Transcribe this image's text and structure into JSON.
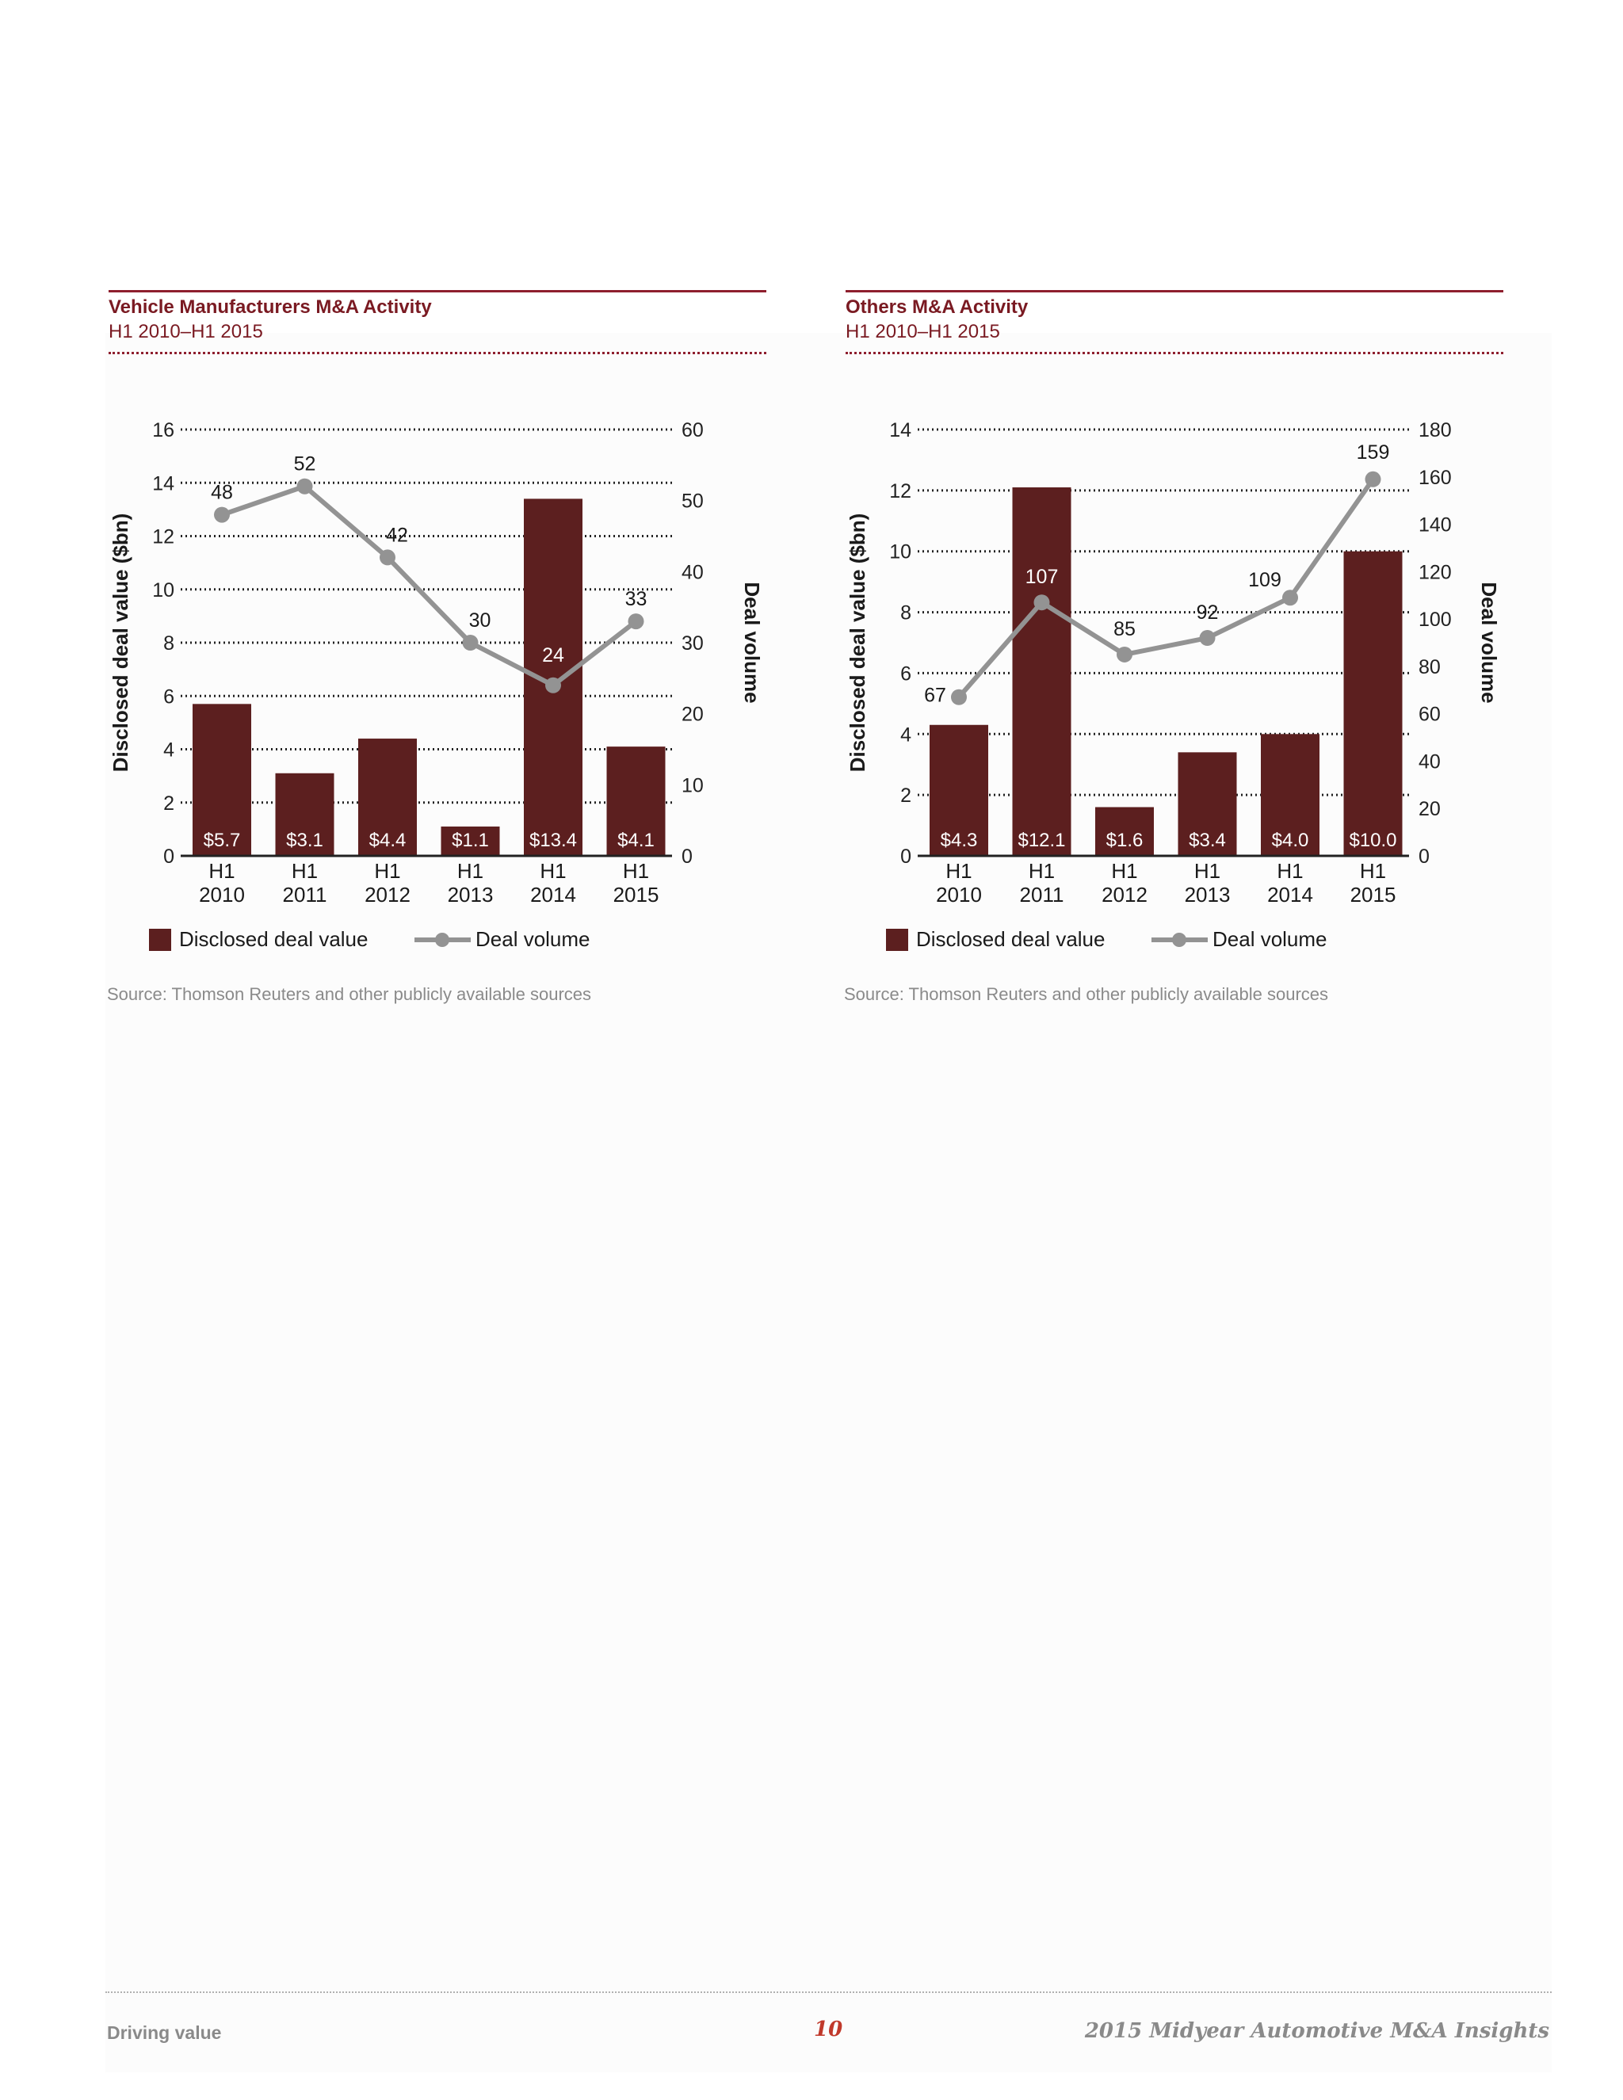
{
  "charts": [
    {
      "title": "Vehicle Manufacturers M&A Activity",
      "subtitle": "H1 2010–H1 2015",
      "source": "Source: Thomson Reuters and other publicly available sources",
      "legend": {
        "bar": "Disclosed deal value",
        "line": "Deal volume"
      }
    },
    {
      "title": "Others M&A Activity",
      "subtitle": "H1 2010–H1 2015",
      "source": "Source: Thomson Reuters and other publicly available sources",
      "legend": {
        "bar": "Disclosed deal value",
        "line": "Deal volume"
      }
    }
  ],
  "chart_data": [
    {
      "type": "bar",
      "categories": [
        "H1 2010",
        "H1 2011",
        "H1 2012",
        "H1 2013",
        "H1 2014",
        "H1 2015"
      ],
      "series": [
        {
          "name": "Disclosed deal value",
          "type": "bar",
          "axis": "left",
          "values": [
            5.7,
            3.1,
            4.4,
            1.1,
            13.4,
            4.1
          ],
          "labels": [
            "$5.7",
            "$3.1",
            "$4.4",
            "$1.1",
            "$13.4",
            "$4.1"
          ],
          "color": "#5c1f1f"
        },
        {
          "name": "Deal volume",
          "type": "line",
          "axis": "right",
          "values": [
            48,
            52,
            42,
            30,
            24,
            33
          ],
          "labels": [
            "48",
            "52",
            "42",
            "30",
            "24",
            "33"
          ],
          "color": "#939393"
        }
      ],
      "ylabel": "Disclosed deal value ($bn)",
      "y2label": "Deal volume",
      "ylim": [
        0,
        16
      ],
      "yticks": [
        0,
        2,
        4,
        6,
        8,
        10,
        12,
        14,
        16
      ],
      "y2lim": [
        0,
        60
      ],
      "y2ticks": [
        0,
        10,
        20,
        30,
        40,
        50,
        60
      ],
      "grid": true,
      "legend_position": "bottom"
    },
    {
      "type": "bar",
      "categories": [
        "H1 2010",
        "H1 2011",
        "H1 2012",
        "H1 2013",
        "H1 2014",
        "H1 2015"
      ],
      "series": [
        {
          "name": "Disclosed deal value",
          "type": "bar",
          "axis": "left",
          "values": [
            4.3,
            12.1,
            1.6,
            3.4,
            4.0,
            10.0
          ],
          "labels": [
            "$4.3",
            "$12.1",
            "$1.6",
            "$3.4",
            "$4.0",
            "$10.0"
          ],
          "color": "#5c1f1f"
        },
        {
          "name": "Deal volume",
          "type": "line",
          "axis": "right",
          "values": [
            67,
            107,
            85,
            92,
            109,
            159
          ],
          "labels": [
            "67",
            "107",
            "85",
            "92",
            "109",
            "159"
          ],
          "color": "#939393"
        }
      ],
      "ylabel": "Disclosed deal value ($bn)",
      "y2label": "Deal volume",
      "ylim": [
        0,
        14
      ],
      "yticks": [
        0,
        2,
        4,
        6,
        8,
        10,
        12,
        14
      ],
      "y2lim": [
        0,
        180
      ],
      "y2ticks": [
        0,
        20,
        40,
        60,
        80,
        100,
        120,
        140,
        160,
        180
      ],
      "grid": true,
      "legend_position": "bottom"
    }
  ],
  "footer": {
    "left": "Driving value",
    "page_number": "10",
    "right": "2015 Midyear Automotive M&A Insights"
  }
}
